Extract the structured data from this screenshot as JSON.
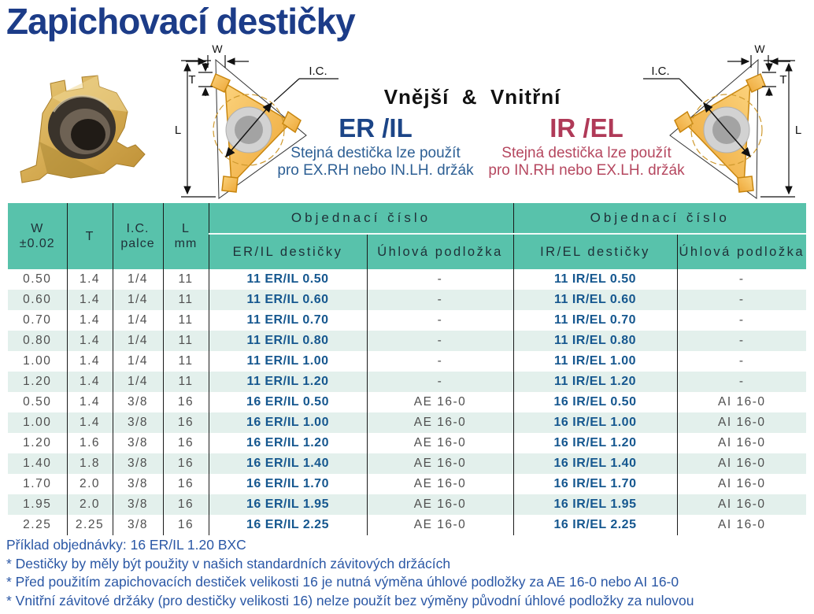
{
  "page_title": "Zapichovací destičky",
  "intro": {
    "section_title": "Vnější  &  Vnitřní",
    "er": {
      "code": "ER /IL",
      "caption_line1": "Stejná destička lze použít",
      "caption_line2": "pro EX.RH nebo IN.LH. držák"
    },
    "ir": {
      "code": "IR /EL",
      "caption_line1": "Stejná destička lze použít",
      "caption_line2": "pro IN.RH nebo EX.LH. držák"
    }
  },
  "diagram_labels": {
    "w": "W",
    "t": "T",
    "l": "L",
    "ic": "I.C."
  },
  "table": {
    "headers": {
      "w_line1": "W",
      "w_line2": "±0.02",
      "t": "T",
      "ic_line1": "I.C.",
      "ic_line2": "palce",
      "l_line1": "L",
      "l_line2": "mm",
      "order_group_er": "Objednací číslo",
      "order_group_ir": "Objednací číslo",
      "er_inserts": "ER/IL destičky",
      "er_shim": "Úhlová podložka",
      "ir_inserts": "IR/EL destičky",
      "ir_shim": "Úhlová podložka"
    },
    "rows": [
      [
        "0.50",
        "1.4",
        "1/4",
        "11",
        "11 ER/IL 0.50",
        "-",
        "11 IR/EL 0.50",
        "-"
      ],
      [
        "0.60",
        "1.4",
        "1/4",
        "11",
        "11 ER/IL 0.60",
        "-",
        "11 IR/EL 0.60",
        "-"
      ],
      [
        "0.70",
        "1.4",
        "1/4",
        "11",
        "11 ER/IL 0.70",
        "-",
        "11 IR/EL 0.70",
        "-"
      ],
      [
        "0.80",
        "1.4",
        "1/4",
        "11",
        "11 ER/IL 0.80",
        "-",
        "11 IR/EL 0.80",
        "-"
      ],
      [
        "1.00",
        "1.4",
        "1/4",
        "11",
        "11 ER/IL 1.00",
        "-",
        "11 IR/EL 1.00",
        "-"
      ],
      [
        "1.20",
        "1.4",
        "1/4",
        "11",
        "11 ER/IL 1.20",
        "-",
        "11 IR/EL 1.20",
        "-"
      ],
      [
        "0.50",
        "1.4",
        "3/8",
        "16",
        "16 ER/IL 0.50",
        "AE 16-0",
        "16 IR/EL 0.50",
        "AI 16-0"
      ],
      [
        "1.00",
        "1.4",
        "3/8",
        "16",
        "16 ER/IL 1.00",
        "AE 16-0",
        "16 IR/EL 1.00",
        "AI 16-0"
      ],
      [
        "1.20",
        "1.6",
        "3/8",
        "16",
        "16 ER/IL 1.20",
        "AE 16-0",
        "16 IR/EL 1.20",
        "AI 16-0"
      ],
      [
        "1.40",
        "1.8",
        "3/8",
        "16",
        "16 ER/IL 1.40",
        "AE 16-0",
        "16 IR/EL 1.40",
        "AI 16-0"
      ],
      [
        "1.70",
        "2.0",
        "3/8",
        "16",
        "16 ER/IL 1.70",
        "AE 16-0",
        "16 IR/EL 1.70",
        "AI 16-0"
      ],
      [
        "1.95",
        "2.0",
        "3/8",
        "16",
        "16 ER/IL 1.95",
        "AE 16-0",
        "16 IR/EL 1.95",
        "AI 16-0"
      ],
      [
        "2.25",
        "2.25",
        "3/8",
        "16",
        "16 ER/IL 2.25",
        "AE 16-0",
        "16 IR/EL 2.25",
        "AI 16-0"
      ]
    ]
  },
  "footer": {
    "lines": [
      "Příklad objednávky: 16 ER/IL 1.20 BXC",
      "* Destičky by měly být použity v našich standardních závitových držácích",
      "* Před použitím zapichovacích destiček velikosti 16 je nutná výměna úhlové podložky za AE 16-0 nebo AI 16-0",
      "* Vnitřní závitové držáky (pro destičky velikosti 16) nelze použít bez výměny původní úhlové podložky za nulovou"
    ]
  },
  "colors": {
    "title_navy": "#1c3c88",
    "table_header_teal": "#58c2ab",
    "row_alt": "#e3f0ec",
    "order_code_blue": "#15578f",
    "er_blue": "#1c4587",
    "ir_red": "#b03a58",
    "caption_blue": "#2d5f94",
    "caption_red": "#b5475f",
    "footer_blue": "#2a57a5",
    "insert_gold": "#d9ab4e"
  }
}
